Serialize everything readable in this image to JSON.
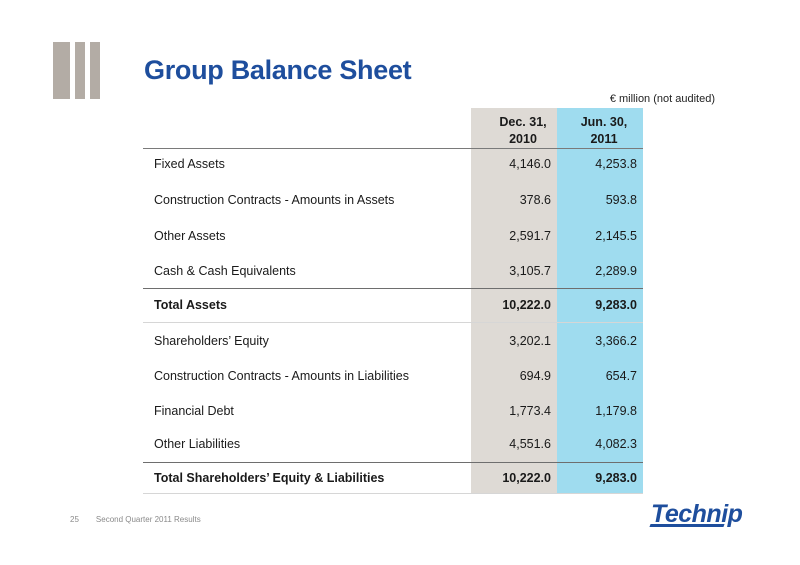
{
  "title": "Group Balance Sheet",
  "unit_note": "€ million (not audited)",
  "columns": [
    {
      "line1": "Dec. 31,",
      "line2": "2010"
    },
    {
      "line1": "Jun. 30,",
      "line2": "2011"
    }
  ],
  "rows": [
    {
      "label": "Fixed Assets",
      "dec": "4,146.0",
      "jun": "4,253.8"
    },
    {
      "label": "Construction Contracts - Amounts in Assets",
      "dec": "378.6",
      "jun": "593.8"
    },
    {
      "label": "Other Assets",
      "dec": "2,591.7",
      "jun": "2,145.5"
    },
    {
      "label": "Cash & Cash Equivalents",
      "dec": "3,105.7",
      "jun": "2,289.9"
    },
    {
      "label": "Total Assets",
      "dec": "10,222.0",
      "jun": "9,283.0"
    },
    {
      "label": "Shareholders’ Equity",
      "dec": "3,202.1",
      "jun": "3,366.2"
    },
    {
      "label": "Construction Contracts - Amounts in Liabilities",
      "dec": "694.9",
      "jun": "654.7"
    },
    {
      "label": "Financial Debt",
      "dec": "1,773.4",
      "jun": "1,179.8"
    },
    {
      "label": "Other Liabilities",
      "dec": "4,551.6",
      "jun": "4,082.3"
    },
    {
      "label": "Total Shareholders’ Equity & Liabilities",
      "dec": "10,222.0",
      "jun": "9,283.0"
    }
  ],
  "footer": {
    "page": "25",
    "text": "Second Quarter 2011 Results"
  },
  "logo_text": "Technip",
  "colors": {
    "title": "#1e4e9d",
    "dec_column": "#dedad5",
    "jun_column": "#9fdcef",
    "deco_bars": "#b3aca5"
  }
}
